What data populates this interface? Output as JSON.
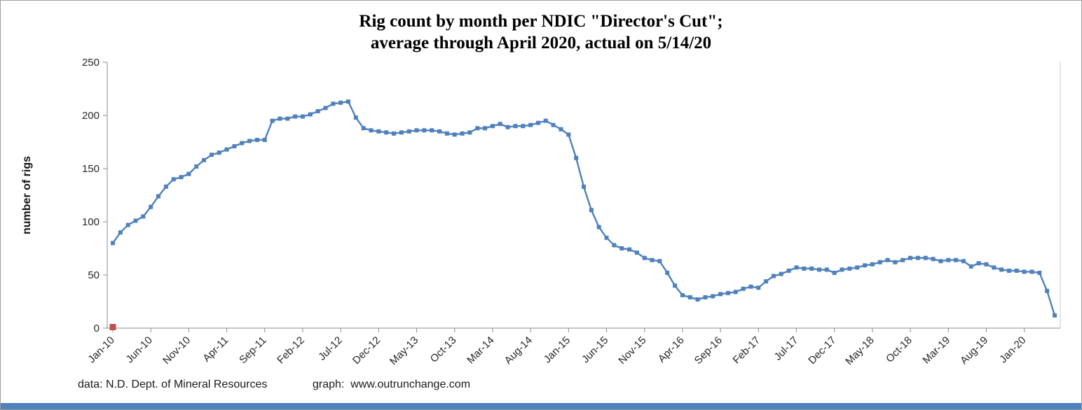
{
  "chart_data": {
    "type": "line",
    "title_line1": "Rig count by month per NDIC \"Director's Cut\";",
    "title_line2": "average through April 2020, actual on 5/14/20",
    "ylabel": "number of rigs",
    "xlabel": "",
    "ylim": [
      0,
      250
    ],
    "y_ticks": [
      0,
      50,
      100,
      150,
      200,
      250
    ],
    "x_tick_labels": [
      "Jan-10",
      "Jun-10",
      "Nov-10",
      "Apr-11",
      "Sep-11",
      "Feb-12",
      "Jul-12",
      "Dec-12",
      "May-13",
      "Oct-13",
      "Mar-14",
      "Aug-14",
      "Jan-15",
      "Jun-15",
      "Nov-15",
      "Apr-16",
      "Sep-16",
      "Feb-17",
      "Jul-17",
      "Dec-17",
      "May-18",
      "Oct-18",
      "Mar-19",
      "Aug-19",
      "Jan-20"
    ],
    "tick_every": 5,
    "grid": false,
    "legend": "none",
    "series": [
      {
        "name": "rig count",
        "color": "#4f81bd",
        "values": [
          80,
          90,
          97,
          101,
          105,
          114,
          124,
          133,
          140,
          142,
          145,
          152,
          158,
          163,
          165,
          168,
          171,
          174,
          176,
          177,
          177,
          195,
          197,
          197,
          199,
          199,
          201,
          204,
          207,
          211,
          212,
          213,
          198,
          188,
          186,
          185,
          184,
          183,
          184,
          185,
          186,
          186,
          186,
          185,
          183,
          182,
          183,
          184,
          188,
          188,
          190,
          192,
          189,
          190,
          190,
          191,
          193,
          195,
          191,
          187,
          182,
          160,
          133,
          111,
          95,
          85,
          78,
          75,
          74,
          71,
          66,
          64,
          63,
          52,
          40,
          31,
          29,
          27,
          29,
          30,
          32,
          33,
          34,
          37,
          39,
          38,
          44,
          49,
          51,
          54,
          57,
          56,
          56,
          55,
          55,
          52,
          55,
          56,
          57,
          59,
          60,
          62,
          64,
          62,
          64,
          66,
          66,
          66,
          65,
          63,
          64,
          64,
          63,
          58,
          61,
          60,
          57,
          55,
          54,
          54,
          53,
          53,
          52,
          35,
          12
        ]
      }
    ],
    "red_marker": {
      "x_index": 0,
      "value": 1,
      "color": "#c0504d"
    }
  },
  "footer": {
    "data_credit": "data: N.D. Dept. of Mineral Resources",
    "graph_credit": "graph:  www.outrunchange.com"
  },
  "colors": {
    "line": "#4f81bd",
    "red_marker": "#c0504d",
    "axis": "#8c8c8c",
    "bottom_bar": "#4f81bd"
  }
}
